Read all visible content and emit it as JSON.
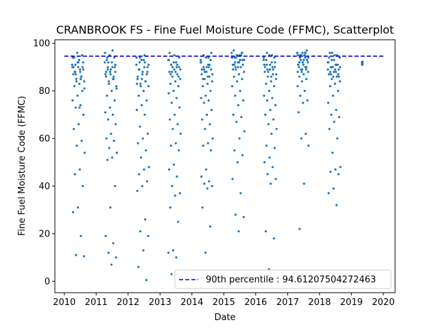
{
  "chart_data": {
    "type": "scatter",
    "title": "CRANBROOK FS - Fine Fuel Moisture Code (FFMC), Scatterplot",
    "xlabel": "Date",
    "ylabel": "Fine Fuel Moisture Code (FFMC)",
    "xlim": [
      "2009-09-15",
      "2020-05-15"
    ],
    "ylim": [
      -4.8,
      101.5
    ],
    "x_ticks": [
      "2010",
      "2011",
      "2012",
      "2013",
      "2014",
      "2015",
      "2016",
      "2017",
      "2018",
      "2019",
      "2020"
    ],
    "x_tick_dates": [
      "2010-01-01",
      "2011-01-01",
      "2012-01-01",
      "2013-01-01",
      "2014-01-01",
      "2015-01-01",
      "2016-01-01",
      "2017-01-01",
      "2018-01-01",
      "2019-01-01",
      "2020-01-01"
    ],
    "y_ticks": [
      0,
      20,
      40,
      60,
      80,
      100
    ],
    "grid": false,
    "legend_position": "bottom-right",
    "point_color": "#1f77b4",
    "reference_line": {
      "label": "90th percentile : 94.61207504272463",
      "value": 94.61207504272463,
      "color": "#0000cc",
      "style": "dashed"
    },
    "season_samples": [
      {
        "year": 2010,
        "start": "2010-04-01",
        "end": "2010-08-25",
        "values": [
          91,
          89,
          88,
          92,
          90,
          87,
          86,
          85,
          84,
          83,
          82,
          80,
          78,
          76,
          74,
          73,
          70,
          66,
          64,
          59,
          57,
          54,
          47,
          45,
          40,
          31,
          29,
          19,
          11,
          10.5,
          93,
          94,
          95,
          96,
          90,
          88,
          91,
          89,
          92,
          90,
          86,
          84,
          81,
          73,
          88,
          90,
          92,
          94,
          85,
          87
        ]
      },
      {
        "year": 2011,
        "start": "2011-04-10",
        "end": "2011-08-28",
        "values": [
          92,
          90,
          89,
          88,
          87,
          86,
          85,
          84,
          82,
          80,
          78,
          76,
          73,
          71,
          70,
          68,
          66,
          62,
          60,
          59,
          56,
          54,
          52,
          51,
          40,
          31,
          19,
          16,
          12,
          10,
          7,
          93,
          94,
          95,
          96,
          97,
          90,
          91,
          89,
          88,
          86,
          83,
          81,
          92,
          94,
          90,
          88,
          87,
          85,
          92
        ]
      },
      {
        "year": 2012,
        "start": "2012-04-05",
        "end": "2012-08-30",
        "values": [
          91,
          90,
          89,
          88,
          87,
          85,
          84,
          83,
          82,
          80,
          78,
          76,
          74,
          72,
          70,
          65,
          62,
          60,
          58,
          55,
          52,
          48,
          47,
          45,
          42,
          40,
          38,
          26,
          21,
          19,
          13,
          6,
          0.5,
          93,
          94,
          95,
          92,
          90,
          88,
          86,
          84,
          82,
          91,
          93,
          89,
          87,
          85,
          83,
          92,
          94
        ]
      },
      {
        "year": 2013,
        "start": "2013-04-05",
        "end": "2013-08-28",
        "values": [
          93,
          92,
          91,
          90,
          89,
          88,
          87,
          86,
          85,
          84,
          83,
          82,
          80,
          79,
          77,
          75,
          73,
          70,
          68,
          66,
          64,
          62,
          58,
          57,
          55,
          49,
          47,
          44,
          40,
          37,
          36,
          31,
          25,
          13,
          12,
          10,
          3,
          94,
          95,
          96,
          91,
          90,
          89,
          88,
          87,
          86,
          92,
          93,
          90,
          88
        ]
      },
      {
        "year": 2014,
        "start": "2014-04-10",
        "end": "2014-08-30",
        "values": [
          92,
          91,
          90,
          89,
          88,
          87,
          86,
          85,
          84,
          83,
          82,
          80,
          78,
          77,
          76,
          75,
          72,
          70,
          68,
          66,
          64,
          60,
          58,
          57,
          55,
          47,
          44,
          42,
          41,
          40,
          39,
          31,
          23,
          12,
          93,
          94,
          95,
          96,
          90,
          89,
          91,
          88,
          87,
          86,
          85,
          93,
          94,
          92,
          90,
          89
        ]
      },
      {
        "year": 2015,
        "start": "2015-04-01",
        "end": "2015-08-28",
        "values": [
          96,
          95,
          94,
          93,
          92,
          91,
          90,
          89,
          88,
          87,
          86,
          85,
          84,
          82,
          80,
          78,
          76,
          74,
          70,
          69,
          67,
          63,
          60,
          55,
          53,
          50,
          43,
          37,
          28,
          27,
          21,
          97,
          96,
          95,
          94,
          93,
          92,
          91,
          90,
          89,
          95,
          94,
          93,
          92,
          91,
          96,
          95,
          94,
          93,
          90
        ]
      },
      {
        "year": 2016,
        "start": "2016-04-01",
        "end": "2016-08-30",
        "values": [
          93,
          92,
          91,
          90,
          89,
          88,
          87,
          86,
          85,
          84,
          83,
          82,
          80,
          78,
          77,
          76,
          74,
          72,
          70,
          68,
          66,
          64,
          62,
          57,
          56,
          52,
          50,
          48,
          45,
          43,
          41,
          21,
          18,
          5,
          94,
          95,
          96,
          92,
          91,
          90,
          89,
          88,
          87,
          86,
          93,
          94,
          95,
          91,
          90,
          89
        ]
      },
      {
        "year": 2017,
        "start": "2017-04-20",
        "end": "2017-08-30",
        "values": [
          96,
          95,
          94,
          93,
          92,
          91,
          90,
          89,
          88,
          87,
          86,
          85,
          84,
          82,
          80,
          78,
          76,
          75,
          71,
          62,
          60,
          57,
          41,
          22,
          97,
          96,
          95,
          94,
          93,
          92,
          91,
          90,
          89,
          88,
          96,
          95,
          94,
          93,
          92,
          91,
          96,
          95,
          94,
          93,
          92,
          90,
          89,
          88,
          96,
          95
        ]
      },
      {
        "year": 2018,
        "start": "2018-04-05",
        "end": "2018-08-30",
        "values": [
          92,
          91,
          90,
          89,
          88,
          87,
          86,
          85,
          84,
          83,
          82,
          80,
          78,
          75,
          72,
          70,
          69,
          67,
          64,
          60,
          54,
          48,
          47,
          46,
          45,
          39,
          37,
          32,
          93,
          94,
          95,
          96,
          91,
          90,
          89,
          88,
          87,
          86,
          93,
          94,
          95,
          96,
          90,
          89,
          88,
          87,
          86,
          92,
          91,
          90
        ]
      },
      {
        "year": 2019,
        "start": "2019-05-01",
        "end": "2019-05-10",
        "values": [
          92,
          91.5,
          91,
          92.3,
          91.8,
          92,
          91.2,
          91.6
        ]
      }
    ]
  }
}
